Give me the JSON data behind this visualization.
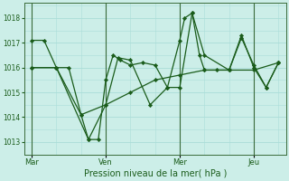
{
  "background_color": "#cceee8",
  "grid_color": "#aaddd8",
  "line_color": "#1a5c1a",
  "marker_color": "#1a5c1a",
  "xlabel": "Pression niveau de la mer( hPa )",
  "ylim": [
    1012.6,
    1018.6
  ],
  "yticks": [
    1013,
    1014,
    1015,
    1016,
    1017,
    1018
  ],
  "xtick_labels": [
    "Mar",
    "Ven",
    "Mer",
    "Jeu"
  ],
  "xtick_pos": [
    0,
    30,
    60,
    90
  ],
  "vline_pos": [
    0,
    30,
    60,
    90
  ],
  "xlim": [
    -3,
    103
  ],
  "series": [
    {
      "x": [
        0,
        5,
        10,
        15,
        20,
        23,
        27,
        30,
        33,
        36,
        40,
        45,
        50,
        55,
        60,
        62,
        65,
        68,
        70,
        75,
        80,
        85,
        90,
        95,
        100
      ],
      "y": [
        1017.1,
        1017.1,
        1016.0,
        1016.0,
        1014.1,
        1013.1,
        1013.1,
        1015.5,
        1016.5,
        1016.3,
        1016.1,
        1016.2,
        1016.1,
        1015.2,
        1017.1,
        1018.0,
        1018.2,
        1016.5,
        1015.9,
        1015.9,
        1015.9,
        1017.2,
        1016.1,
        1015.2,
        1016.2
      ]
    },
    {
      "x": [
        0,
        10,
        23,
        30,
        35,
        40,
        48,
        55,
        60,
        65,
        70,
        80,
        85,
        90,
        95,
        100
      ],
      "y": [
        1016.0,
        1016.0,
        1013.1,
        1014.5,
        1016.4,
        1016.3,
        1014.5,
        1015.2,
        1015.2,
        1018.2,
        1016.5,
        1015.9,
        1017.3,
        1016.0,
        1015.2,
        1016.2
      ]
    },
    {
      "x": [
        0,
        10,
        20,
        30,
        40,
        50,
        60,
        70,
        80,
        90,
        100
      ],
      "y": [
        1016.0,
        1016.0,
        1014.1,
        1014.5,
        1015.0,
        1015.5,
        1015.7,
        1015.9,
        1015.9,
        1015.9,
        1016.2
      ]
    }
  ]
}
